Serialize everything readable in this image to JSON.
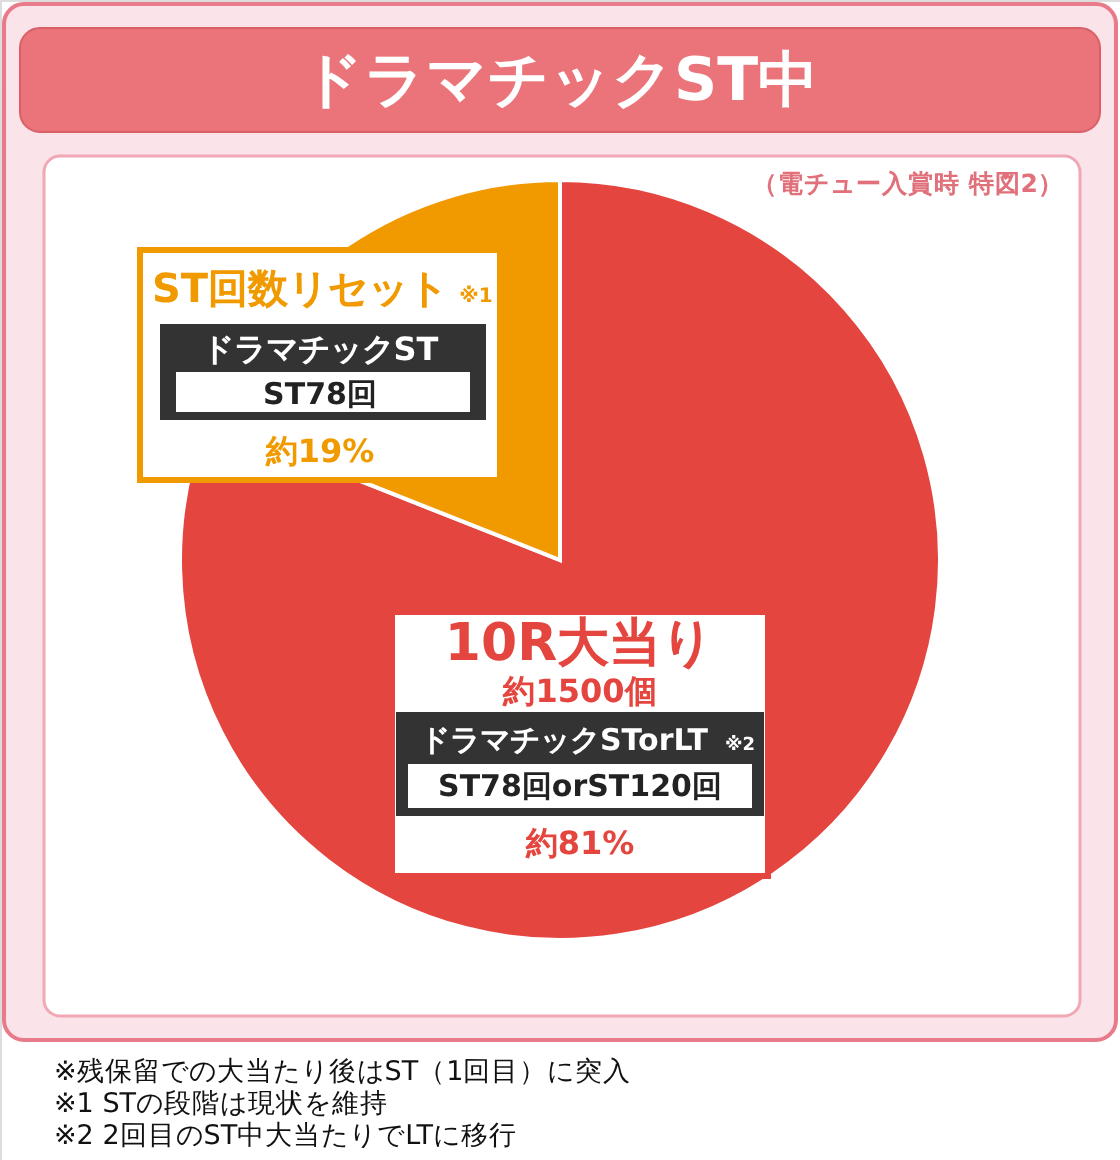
{
  "chart_data": {
    "type": "pie",
    "title": "ドラマチックST中",
    "subtitle": "（電チュー入賞時 特図2）",
    "categories": [
      "10R大当り",
      "ST回数リセット"
    ],
    "values": [
      81,
      19
    ],
    "colors": [
      "#e5453f",
      "#f19a00"
    ],
    "value_labels": [
      "約81%",
      "約19%"
    ],
    "annotations": [
      "約1500個",
      "ドラマチックSTorLT",
      "ST78回orST120回",
      "※2",
      "ドラマチックST",
      "ST78回",
      "※1",
      "※残保留での大当たり後はST（1回目）に突入",
      "※1 STの段階は現状を維持",
      "※2 2回目のST中大当たりでLTに移行"
    ]
  }
}
